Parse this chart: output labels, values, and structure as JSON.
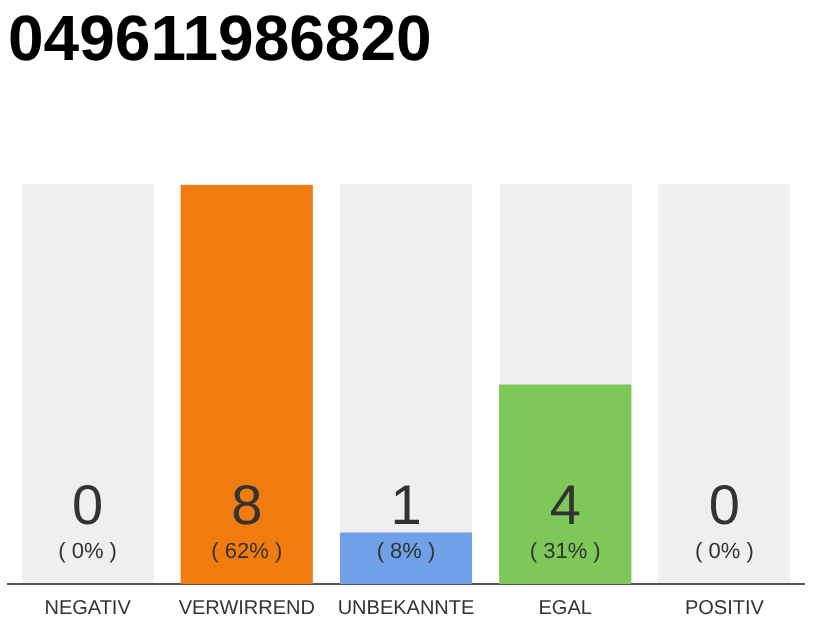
{
  "chart_data": {
    "type": "bar",
    "title": "049611986820",
    "categories": [
      "NEGATIV",
      "VERWIRREND",
      "UNBEKANNTE",
      "EGAL",
      "POSITIV"
    ],
    "values": [
      0,
      62,
      8,
      31,
      0
    ],
    "annotations": [
      "0",
      "8",
      "1",
      "4",
      "0"
    ],
    "colors": [
      "#f07c10",
      "#f07c10",
      "#6fa0e8",
      "#7ec85a",
      "#7ec85a"
    ],
    "value_labels": [
      "( 0% )",
      "( 62% )",
      "( 8% )",
      "( 31% )",
      "( 0% )"
    ],
    "tick_labels": "x",
    "grid": false,
    "legend": false
  }
}
